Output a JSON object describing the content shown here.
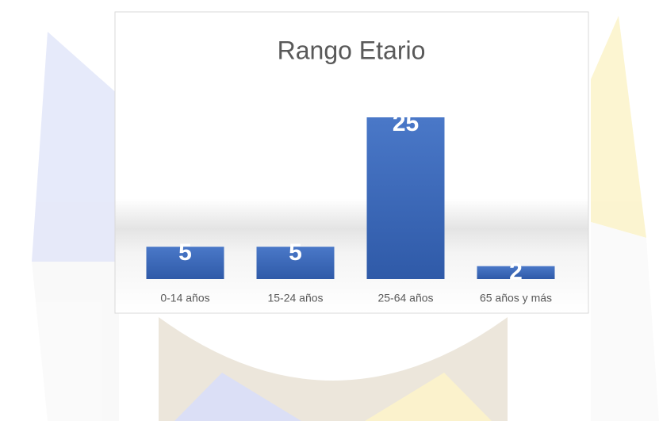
{
  "chart_data": {
    "type": "bar",
    "title": "Rango Etario",
    "categories": [
      "0-14 años",
      "15-24 años",
      "25-64 años",
      "65 años y más"
    ],
    "values": [
      5,
      5,
      25,
      2
    ],
    "color": "#4472c4"
  }
}
